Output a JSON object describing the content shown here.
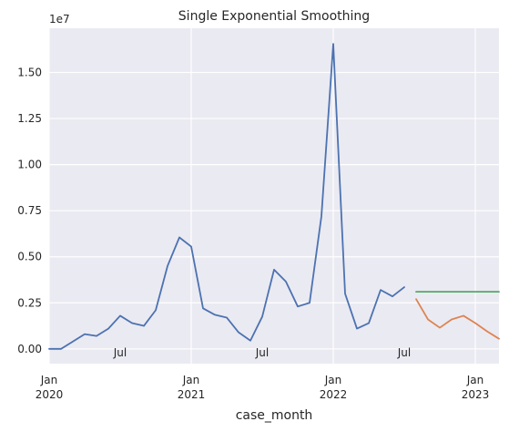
{
  "chart_data": {
    "type": "line",
    "title": "Single Exponential Smoothing",
    "xlabel": "case_month",
    "ylabel": "",
    "y_multiplier_label": "1e7",
    "y_scale": 10000000,
    "xlim": [
      "2020-01",
      "2023-03"
    ],
    "ylim": [
      -0.08,
      1.74
    ],
    "y_ticks": [
      0.0,
      0.25,
      0.5,
      0.75,
      1.0,
      1.25,
      1.5
    ],
    "y_tick_labels": [
      "0.00",
      "0.25",
      "0.50",
      "0.75",
      "1.00",
      "1.25",
      "1.50"
    ],
    "x_ticks": [
      {
        "date": "2020-01",
        "line1": "Jan",
        "line2": "2020",
        "major": true
      },
      {
        "date": "2020-07",
        "line1": "Jul",
        "line2": "",
        "major": false
      },
      {
        "date": "2021-01",
        "line1": "Jan",
        "line2": "2021",
        "major": true
      },
      {
        "date": "2021-07",
        "line1": "Jul",
        "line2": "",
        "major": false
      },
      {
        "date": "2022-01",
        "line1": "Jan",
        "line2": "2022",
        "major": true
      },
      {
        "date": "2022-07",
        "line1": "Jul",
        "line2": "",
        "major": false
      },
      {
        "date": "2023-01",
        "line1": "Jan",
        "line2": "2023",
        "major": true
      }
    ],
    "grid": true,
    "series": [
      {
        "color": "#4c72b0",
        "x": [
          "2020-01",
          "2020-02",
          "2020-03",
          "2020-04",
          "2020-05",
          "2020-06",
          "2020-07",
          "2020-08",
          "2020-09",
          "2020-10",
          "2020-11",
          "2020-12",
          "2021-01",
          "2021-02",
          "2021-03",
          "2021-04",
          "2021-05",
          "2021-06",
          "2021-07",
          "2021-08",
          "2021-09",
          "2021-10",
          "2021-11",
          "2021-12",
          "2022-01",
          "2022-02",
          "2022-03",
          "2022-04",
          "2022-05",
          "2022-06",
          "2022-07"
        ],
        "values": [
          0.0,
          0.0,
          0.04,
          0.08,
          0.07,
          0.11,
          0.18,
          0.14,
          0.125,
          0.21,
          0.45,
          0.605,
          0.555,
          0.22,
          0.185,
          0.17,
          0.09,
          0.045,
          0.175,
          0.43,
          0.365,
          0.23,
          0.25,
          0.72,
          1.655,
          0.3,
          0.11,
          0.14,
          0.32,
          0.285,
          0.335
        ]
      },
      {
        "color": "#dd8452",
        "x": [
          "2022-08",
          "2022-09",
          "2022-10",
          "2022-11",
          "2022-12",
          "2023-01",
          "2023-02",
          "2023-03"
        ],
        "values": [
          0.27,
          0.16,
          0.115,
          0.16,
          0.18,
          0.14,
          0.095,
          0.055
        ]
      },
      {
        "color": "#55a868",
        "x": [
          "2022-08",
          "2022-09",
          "2022-10",
          "2022-11",
          "2022-12",
          "2023-01",
          "2023-02",
          "2023-03"
        ],
        "values": [
          0.31,
          0.31,
          0.31,
          0.31,
          0.31,
          0.31,
          0.31,
          0.31
        ]
      }
    ]
  }
}
